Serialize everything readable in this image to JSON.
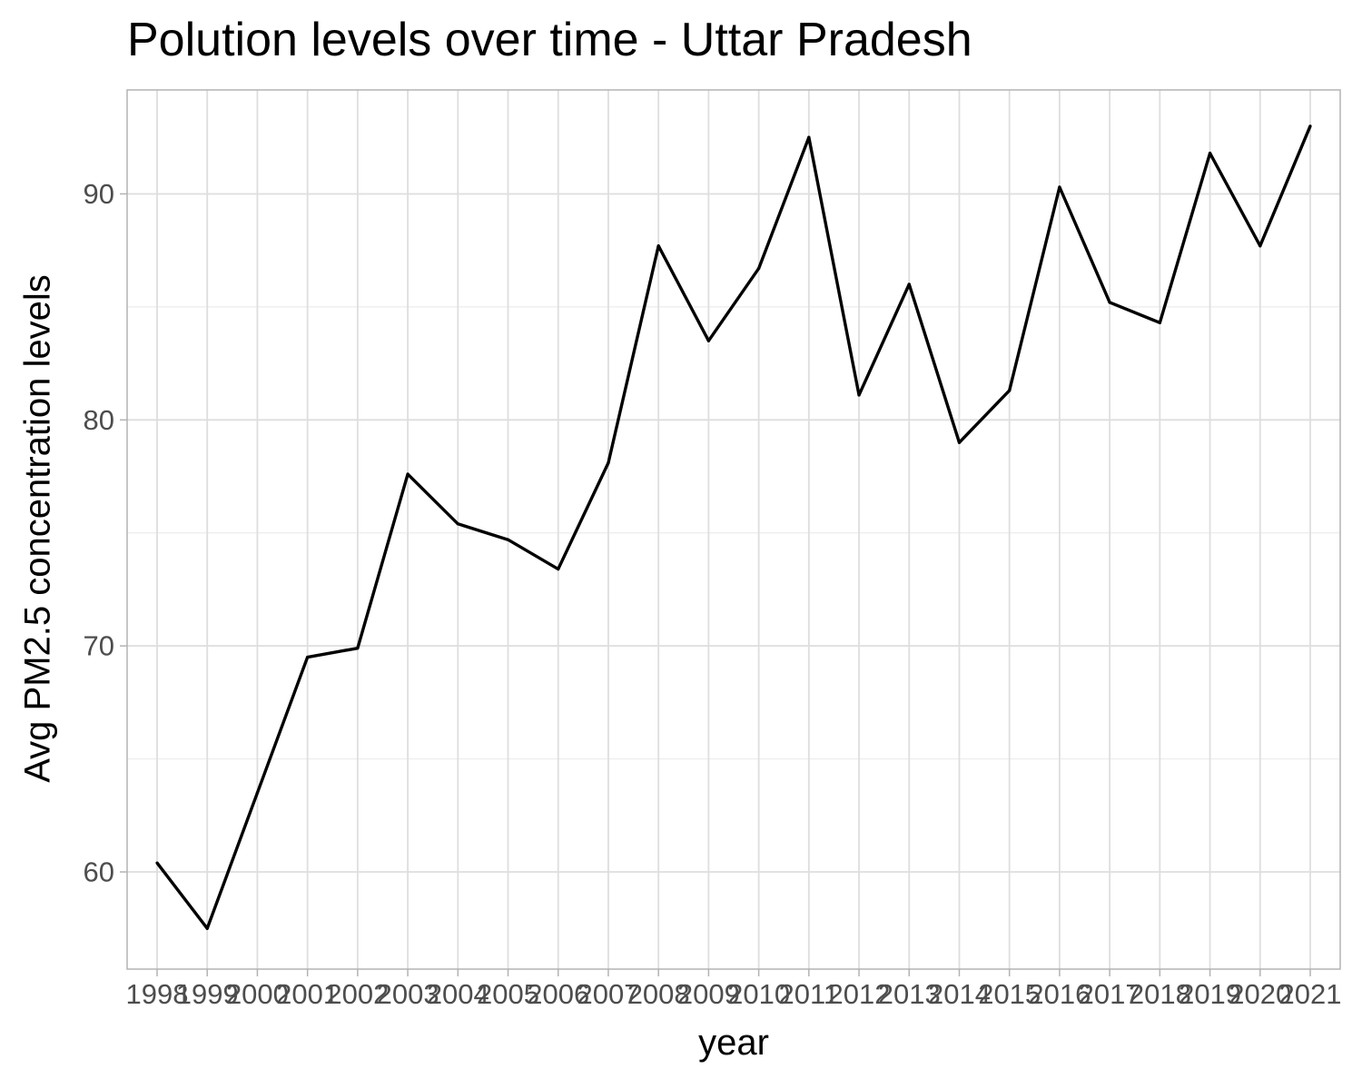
{
  "chart_data": {
    "type": "line",
    "title": "Polution levels over time - Uttar Pradesh",
    "xlabel": "year",
    "ylabel": "Avg PM2.5 concentration levels",
    "x": [
      1998,
      1999,
      2000,
      2001,
      2002,
      2003,
      2004,
      2005,
      2006,
      2007,
      2008,
      2009,
      2010,
      2011,
      2012,
      2013,
      2014,
      2015,
      2016,
      2017,
      2018,
      2019,
      2020,
      2021
    ],
    "x_tick_labels": [
      "1998",
      "1999",
      "2000",
      "2001",
      "2002",
      "2003",
      "2004",
      "2005",
      "2006",
      "2007",
      "2008",
      "2009",
      "2010",
      "2011",
      "2012",
      "2013",
      "2014",
      "2015",
      "2016",
      "2017",
      "2018",
      "2019",
      "2020",
      "2021"
    ],
    "series": [
      {
        "values": [
          60.4,
          57.5,
          63.5,
          69.5,
          69.9,
          77.6,
          75.4,
          74.7,
          73.4,
          78.1,
          87.7,
          83.5,
          86.7,
          92.5,
          81.1,
          86.0,
          79.0,
          81.3,
          90.3,
          85.2,
          84.3,
          91.8,
          87.7,
          93.0
        ]
      }
    ],
    "ylim": [
      55.7,
      94.6
    ],
    "y_ticks": [
      60,
      70,
      80,
      90
    ],
    "y_tick_labels": [
      "60",
      "70",
      "80",
      "90"
    ],
    "y_minor_ticks": [
      65,
      75,
      85
    ],
    "grid": true,
    "legend": "none",
    "colors": {
      "line": "#000000",
      "grid_major": "#dedede",
      "grid_minor": "#ececec",
      "panel_border": "#b3b3b3",
      "tick_label": "#4d4d4d",
      "background": "#ffffff"
    }
  }
}
